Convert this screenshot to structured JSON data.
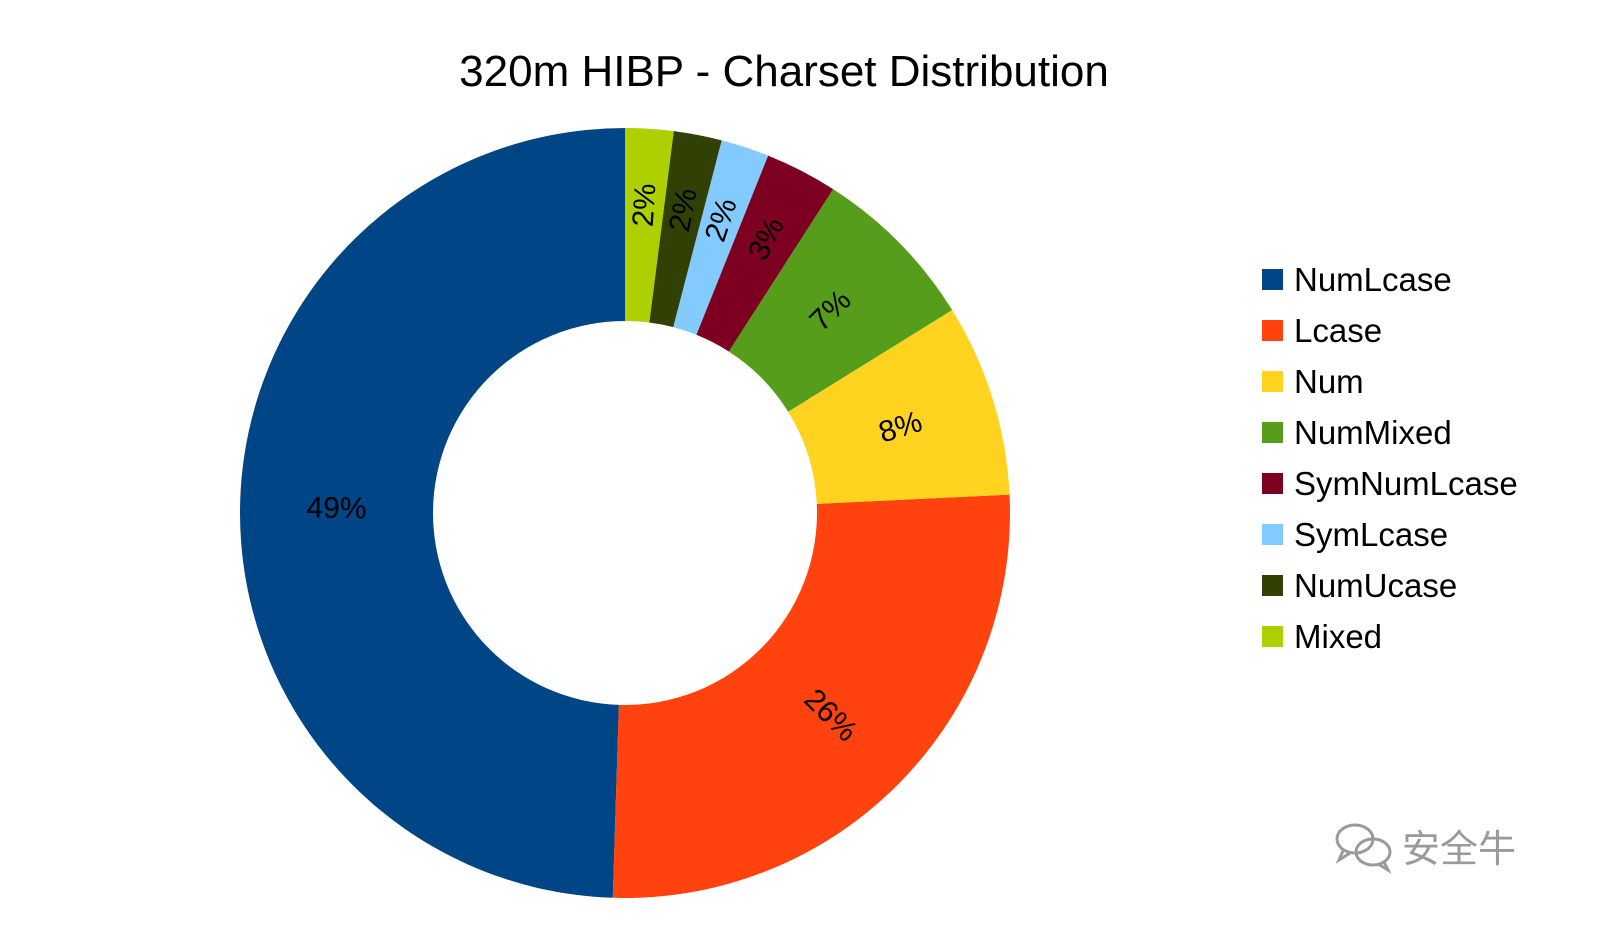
{
  "chart_data": {
    "type": "pie",
    "title": "320m HIBP - Charset Distribution",
    "donut": true,
    "legend_position": "right",
    "slices": [
      {
        "name": "NumLcase",
        "value": 49,
        "label": "49%",
        "color": "#004586"
      },
      {
        "name": "Lcase",
        "value": 26,
        "label": "26%",
        "color": "#ff420e"
      },
      {
        "name": "Num",
        "value": 8,
        "label": "8%",
        "color": "#ffd320"
      },
      {
        "name": "NumMixed",
        "value": 7,
        "label": "7%",
        "color": "#579d1c"
      },
      {
        "name": "SymNumLcase",
        "value": 3,
        "label": "3%",
        "color": "#7e0021"
      },
      {
        "name": "SymLcase",
        "value": 2,
        "label": "2%",
        "color": "#83caff"
      },
      {
        "name": "NumUcase",
        "value": 2,
        "label": "2%",
        "color": "#314004"
      },
      {
        "name": "Mixed",
        "value": 2,
        "label": "2%",
        "color": "#aecf00"
      }
    ]
  },
  "watermark": {
    "text": "安全牛",
    "icon": "wechat-icon"
  }
}
